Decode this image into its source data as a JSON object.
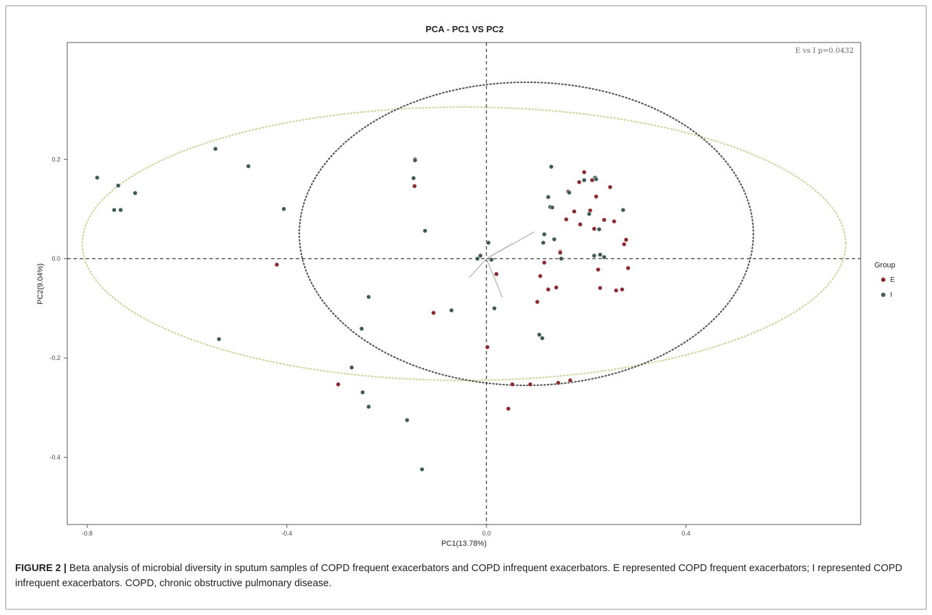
{
  "caption": {
    "label": "FIGURE 2 |",
    "text": " Beta analysis of microbial diversity in sputum samples of COPD frequent exacerbators and COPD infrequent exacerbators. E represented COPD frequent exacerbators; I represented COPD infrequent exacerbators. COPD, chronic obstructive pulmonary disease."
  },
  "chart_data": {
    "type": "scatter",
    "title": "PCA - PC1 VS PC2",
    "xlabel": "PC1(13.78%)",
    "ylabel": "PC2(9.04%)",
    "annotation": "E vs I p=0.0432",
    "xlim": [
      -0.84,
      0.75
    ],
    "ylim": [
      -0.535,
      0.435
    ],
    "x_ticks": [
      -0.8,
      -0.4,
      0.0,
      0.4
    ],
    "x_tick_labels": [
      "-0.8",
      "-0.4",
      "0.0",
      "0.4"
    ],
    "y_ticks": [
      -0.4,
      -0.2,
      0.0,
      0.2
    ],
    "y_tick_labels": [
      "-0.4",
      "-0.2",
      "0.0",
      "0.2"
    ],
    "grid": false,
    "legend": {
      "title": "Group",
      "position": "right",
      "entries": [
        "E",
        "I"
      ]
    },
    "colors": {
      "E": "#8b2a2e",
      "I": "#3d5a55",
      "ellipse_E": "#d6d2a0",
      "ellipse_I": "#555555"
    },
    "series": [
      {
        "name": "E",
        "points": [
          [
            -0.144,
            0.146
          ],
          [
            -0.42,
            -0.012
          ],
          [
            -0.106,
            -0.109
          ],
          [
            -0.297,
            -0.253
          ],
          [
            0.02,
            -0.031
          ],
          [
            0.052,
            -0.253
          ],
          [
            0.088,
            -0.253
          ],
          [
            0.144,
            -0.25
          ],
          [
            0.168,
            -0.245
          ],
          [
            0.044,
            -0.302
          ],
          [
            0.002,
            -0.178
          ],
          [
            0.102,
            -0.087
          ],
          [
            0.108,
            -0.035
          ],
          [
            0.116,
            -0.008
          ],
          [
            0.124,
            -0.062
          ],
          [
            0.14,
            -0.058
          ],
          [
            0.148,
            0.014
          ],
          [
            0.16,
            0.079
          ],
          [
            0.164,
            0.135
          ],
          [
            0.176,
            0.095
          ],
          [
            0.186,
            0.154
          ],
          [
            0.188,
            0.069
          ],
          [
            0.196,
            0.174
          ],
          [
            0.208,
            0.097
          ],
          [
            0.212,
            0.158
          ],
          [
            0.216,
            0.06
          ],
          [
            0.22,
            0.125
          ],
          [
            0.224,
            -0.022
          ],
          [
            0.228,
            -0.059
          ],
          [
            0.236,
            0.078
          ],
          [
            0.248,
            0.144
          ],
          [
            0.256,
            0.075
          ],
          [
            0.26,
            -0.064
          ],
          [
            0.272,
            -0.062
          ],
          [
            0.276,
            0.029
          ],
          [
            0.28,
            0.038
          ],
          [
            0.284,
            -0.019
          ],
          [
            0.148,
            0.012
          ]
        ]
      },
      {
        "name": "I",
        "points": [
          [
            -0.78,
            0.163
          ],
          [
            -0.738,
            0.147
          ],
          [
            -0.704,
            0.132
          ],
          [
            -0.746,
            0.098
          ],
          [
            -0.733,
            0.098
          ],
          [
            -0.543,
            0.221
          ],
          [
            -0.477,
            0.186
          ],
          [
            -0.406,
            0.1
          ],
          [
            -0.536,
            -0.162
          ],
          [
            -0.143,
            0.2
          ],
          [
            -0.143,
            0.198
          ],
          [
            -0.146,
            0.162
          ],
          [
            -0.123,
            0.056
          ],
          [
            -0.236,
            -0.077
          ],
          [
            -0.25,
            -0.141
          ],
          [
            -0.27,
            -0.219
          ],
          [
            -0.248,
            -0.269
          ],
          [
            -0.236,
            -0.298
          ],
          [
            -0.159,
            -0.325
          ],
          [
            -0.129,
            -0.424
          ],
          [
            -0.07,
            -0.104
          ],
          [
            -0.012,
            0.006
          ],
          [
            0.004,
            0.032
          ],
          [
            -0.018,
            0.0
          ],
          [
            0.016,
            -0.1
          ],
          [
            0.01,
            -0.002
          ],
          [
            0.106,
            -0.153
          ],
          [
            0.112,
            -0.16
          ],
          [
            0.114,
            0.032
          ],
          [
            0.116,
            0.049
          ],
          [
            0.124,
            0.124
          ],
          [
            0.128,
            0.104
          ],
          [
            0.132,
            0.103
          ],
          [
            0.13,
            0.185
          ],
          [
            0.136,
            0.039
          ],
          [
            0.15,
            0.0
          ],
          [
            0.166,
            0.133
          ],
          [
            0.196,
            0.158
          ],
          [
            0.218,
            0.163
          ],
          [
            0.22,
            0.16
          ],
          [
            0.216,
            0.006
          ],
          [
            0.228,
            0.008
          ],
          [
            0.236,
            0.003
          ],
          [
            0.274,
            0.098
          ],
          [
            0.206,
            0.09
          ],
          [
            0.226,
            0.059
          ]
        ]
      }
    ],
    "ellipses": [
      {
        "group": "E",
        "center": [
          -0.045,
          0.03
        ],
        "radii": [
          0.765,
          0.275
        ]
      },
      {
        "group": "I",
        "center": [
          0.08,
          0.05
        ],
        "radii": [
          0.455,
          0.305
        ]
      }
    ],
    "loading_arrows": [
      [
        0.0,
        0.0,
        0.096,
        0.054
      ],
      [
        0.0,
        0.0,
        -0.034,
        -0.038
      ],
      [
        0.0,
        0.0,
        0.032,
        -0.078
      ],
      [
        0.0,
        0.0,
        0.052,
        0.03
      ]
    ]
  }
}
